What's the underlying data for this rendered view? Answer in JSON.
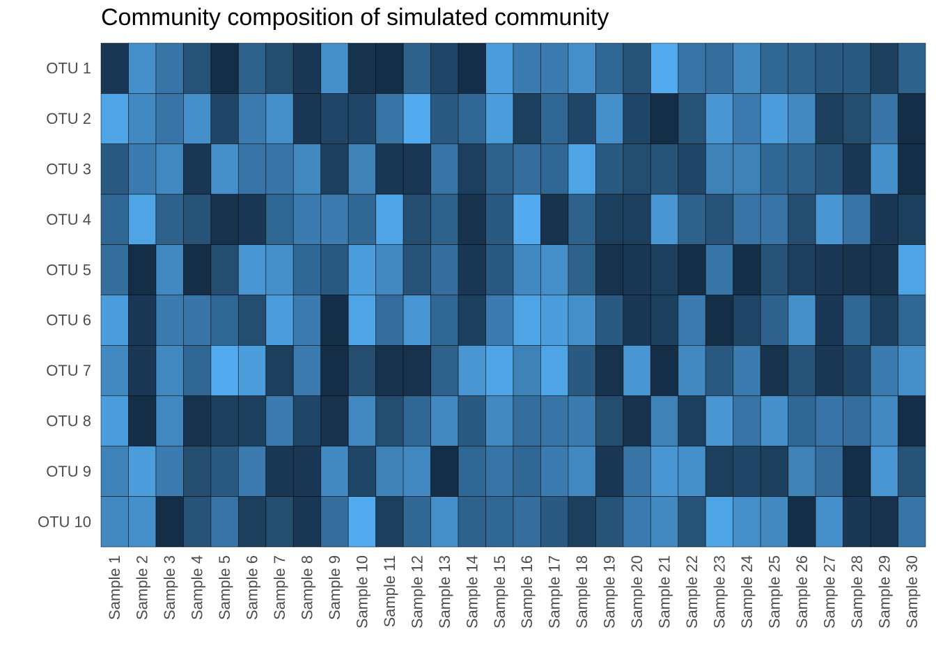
{
  "chart_data": {
    "type": "heatmap",
    "title": "Community composition of simulated community",
    "xlabel": "",
    "ylabel": "",
    "x_categories": [
      "Sample 1",
      "Sample 2",
      "Sample 3",
      "Sample 4",
      "Sample 5",
      "Sample 6",
      "Sample 7",
      "Sample 8",
      "Sample 9",
      "Sample 10",
      "Sample 11",
      "Sample 12",
      "Sample 13",
      "Sample 14",
      "Sample 15",
      "Sample 16",
      "Sample 17",
      "Sample 18",
      "Sample 19",
      "Sample 20",
      "Sample 21",
      "Sample 22",
      "Sample 23",
      "Sample 24",
      "Sample 25",
      "Sample 26",
      "Sample 27",
      "Sample 28",
      "Sample 29",
      "Sample 30"
    ],
    "y_categories": [
      "OTU 1",
      "OTU 2",
      "OTU 3",
      "OTU 4",
      "OTU 5",
      "OTU 6",
      "OTU 7",
      "OTU 8",
      "OTU 9",
      "OTU 10"
    ],
    "color_low": "#132B43",
    "color_high": "#56B1F7",
    "legend": "none",
    "grid": false,
    "cell_border": "#000000",
    "values": [
      [
        0.1,
        0.75,
        0.55,
        0.3,
        0.02,
        0.4,
        0.25,
        0.1,
        0.75,
        0.05,
        0.02,
        0.4,
        0.2,
        0.02,
        0.85,
        0.6,
        0.6,
        0.75,
        0.45,
        0.3,
        0.95,
        0.55,
        0.5,
        0.7,
        0.45,
        0.4,
        0.35,
        0.35,
        0.15,
        0.4
      ],
      [
        0.9,
        0.7,
        0.55,
        0.75,
        0.2,
        0.6,
        0.75,
        0.1,
        0.2,
        0.2,
        0.55,
        0.95,
        0.35,
        0.45,
        0.85,
        0.15,
        0.45,
        0.2,
        0.75,
        0.2,
        0.02,
        0.3,
        0.8,
        0.6,
        0.85,
        0.7,
        0.15,
        0.25,
        0.55,
        0.02
      ],
      [
        0.35,
        0.6,
        0.7,
        0.1,
        0.75,
        0.55,
        0.55,
        0.7,
        0.15,
        0.65,
        0.1,
        0.1,
        0.55,
        0.15,
        0.4,
        0.5,
        0.45,
        0.9,
        0.35,
        0.25,
        0.3,
        0.2,
        0.65,
        0.65,
        0.45,
        0.4,
        0.3,
        0.1,
        0.75,
        0.02
      ],
      [
        0.45,
        0.9,
        0.4,
        0.3,
        0.05,
        0.1,
        0.45,
        0.6,
        0.6,
        0.45,
        0.9,
        0.25,
        0.4,
        0.05,
        0.35,
        0.95,
        0.05,
        0.4,
        0.15,
        0.15,
        0.8,
        0.4,
        0.3,
        0.55,
        0.55,
        0.25,
        0.8,
        0.55,
        0.1,
        0.15
      ],
      [
        0.5,
        0.02,
        0.7,
        0.02,
        0.25,
        0.8,
        0.75,
        0.45,
        0.35,
        0.85,
        0.7,
        0.3,
        0.5,
        0.1,
        0.35,
        0.7,
        0.75,
        0.4,
        0.05,
        0.1,
        0.15,
        0.02,
        0.55,
        0.02,
        0.3,
        0.15,
        0.1,
        0.05,
        0.05,
        0.9
      ],
      [
        0.85,
        0.1,
        0.6,
        0.55,
        0.45,
        0.25,
        0.85,
        0.6,
        0.02,
        0.9,
        0.5,
        0.8,
        0.45,
        0.15,
        0.6,
        0.9,
        0.85,
        0.75,
        0.35,
        0.1,
        0.15,
        0.6,
        0.02,
        0.2,
        0.4,
        0.75,
        0.1,
        0.45,
        0.15,
        0.45
      ],
      [
        0.7,
        0.1,
        0.7,
        0.45,
        0.95,
        0.85,
        0.15,
        0.6,
        0.02,
        0.25,
        0.05,
        0.05,
        0.4,
        0.8,
        0.9,
        0.65,
        0.9,
        0.35,
        0.05,
        0.8,
        0.02,
        0.7,
        0.35,
        0.6,
        0.05,
        0.3,
        0.1,
        0.2,
        0.6,
        0.75
      ],
      [
        0.85,
        0.02,
        0.7,
        0.05,
        0.15,
        0.15,
        0.6,
        0.2,
        0.05,
        0.7,
        0.25,
        0.45,
        0.7,
        0.35,
        0.7,
        0.5,
        0.55,
        0.6,
        0.25,
        0.05,
        0.65,
        0.15,
        0.8,
        0.55,
        0.75,
        0.45,
        0.55,
        0.5,
        0.7,
        0.02
      ],
      [
        0.65,
        0.85,
        0.6,
        0.25,
        0.35,
        0.6,
        0.1,
        0.1,
        0.7,
        0.2,
        0.65,
        0.7,
        0.02,
        0.45,
        0.55,
        0.45,
        0.6,
        0.7,
        0.1,
        0.55,
        0.8,
        0.75,
        0.15,
        0.2,
        0.15,
        0.65,
        0.5,
        0.02,
        0.8,
        0.3
      ],
      [
        0.7,
        0.75,
        0.02,
        0.3,
        0.55,
        0.15,
        0.25,
        0.1,
        0.5,
        0.95,
        0.15,
        0.45,
        0.75,
        0.4,
        0.45,
        0.5,
        0.35,
        0.15,
        0.3,
        0.6,
        0.7,
        0.3,
        0.9,
        0.75,
        0.7,
        0.02,
        0.75,
        0.1,
        0.05,
        0.55
      ]
    ]
  }
}
